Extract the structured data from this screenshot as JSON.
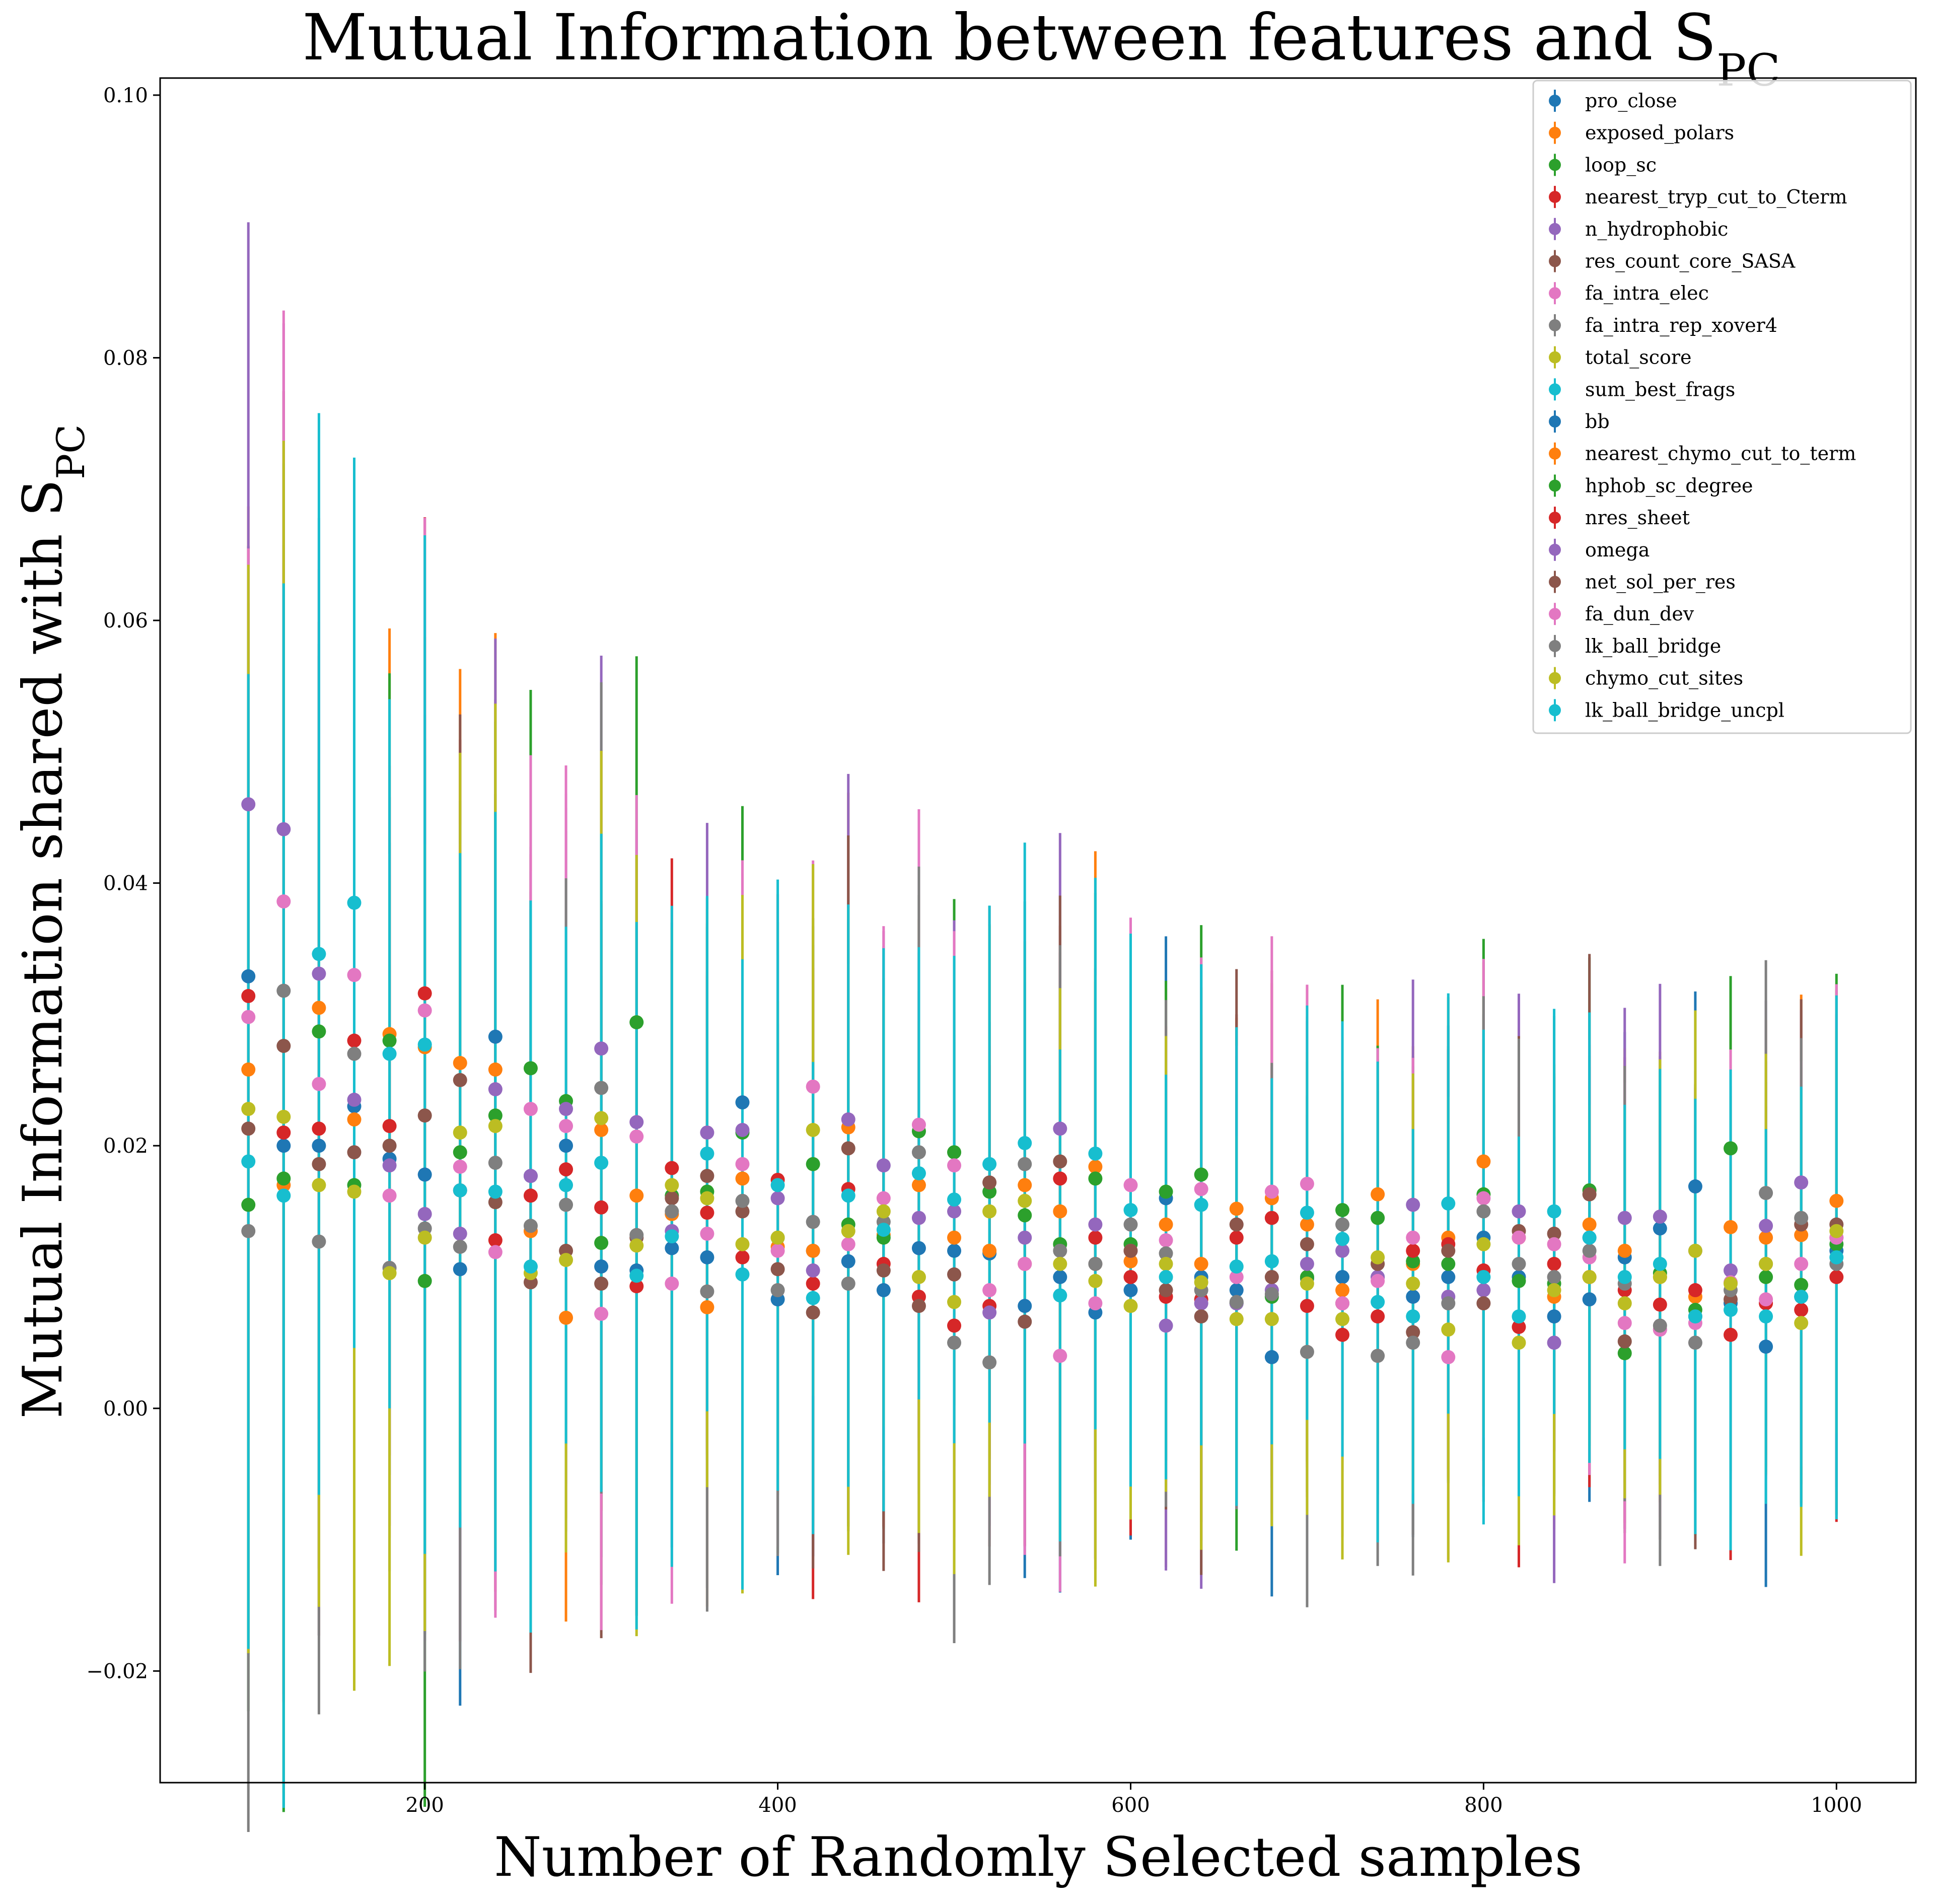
{
  "chart_data": {
    "type": "scatter",
    "title": "Mutual Information between features and S",
    "title_sub": "PC",
    "xlabel": "Number of Randomly Selected samples",
    "ylabel": "Mutual Information shared with S",
    "ylabel_sub": "PC",
    "xlim": [
      50,
      1045
    ],
    "ylim": [
      -0.0285,
      0.1013
    ],
    "xticks": [
      200,
      400,
      600,
      800,
      1000
    ],
    "yticks": [
      -0.02,
      0.0,
      0.02,
      0.04,
      0.06,
      0.08,
      0.1
    ],
    "ytick_labels": [
      "−0.02",
      "0.00",
      "0.02",
      "0.04",
      "0.06",
      "0.08",
      "0.10"
    ],
    "grid": false,
    "legend_position": "top-right",
    "x": [
      100,
      120,
      140,
      160,
      180,
      200,
      220,
      240,
      260,
      280,
      300,
      320,
      340,
      360,
      380,
      400,
      420,
      440,
      460,
      480,
      500,
      520,
      540,
      560,
      580,
      600,
      620,
      640,
      660,
      680,
      700,
      720,
      740,
      760,
      780,
      800,
      820,
      840,
      860,
      880,
      900,
      920,
      940,
      960,
      980,
      1000
    ],
    "series": [
      {
        "name": "pro_close",
        "color": "#1f77b4",
        "values": [
          0.0329,
          0.02,
          0.02,
          0.023,
          0.019,
          0.0178,
          0.0106,
          0.0283,
          0.0177,
          0.02,
          0.0108,
          0.0105,
          0.0122,
          0.0115,
          0.0233,
          0.0083,
          0.012,
          0.0112,
          0.009,
          0.0122,
          0.012,
          0.0118,
          0.0078,
          0.01,
          0.0073,
          0.009,
          0.016,
          0.01,
          0.009,
          0.0039,
          0.0099,
          0.01,
          0.01,
          0.0085,
          0.01,
          0.013,
          0.01,
          0.007,
          0.0083,
          0.0115,
          0.0137,
          0.0169,
          0.008,
          0.0047,
          0.0085,
          0.012
        ]
      },
      {
        "name": "exposed_polars",
        "color": "#ff7f0e",
        "values": [
          0.0258,
          0.017,
          0.0305,
          0.022,
          0.0285,
          0.0275,
          0.0263,
          0.0258,
          0.0135,
          0.0069,
          0.0212,
          0.0162,
          0.0148,
          0.0077,
          0.0175,
          0.0123,
          0.012,
          0.0214,
          0.0132,
          0.017,
          0.013,
          0.012,
          0.017,
          0.015,
          0.0184,
          0.0112,
          0.014,
          0.011,
          0.0152,
          0.016,
          0.014,
          0.009,
          0.0163,
          0.011,
          0.013,
          0.0188,
          0.013,
          0.0085,
          0.014,
          0.012,
          0.01,
          0.0085,
          0.0138,
          0.013,
          0.0132,
          0.0158
        ]
      },
      {
        "name": "loop_sc",
        "color": "#2ca02c",
        "values": [
          0.0155,
          0.0175,
          0.0287,
          0.017,
          0.028,
          0.0097,
          0.0195,
          0.0223,
          0.0259,
          0.0234,
          0.0126,
          0.0294,
          0.0162,
          0.0165,
          0.021,
          0.013,
          0.0186,
          0.014,
          0.013,
          0.0211,
          0.0195,
          0.0165,
          0.0147,
          0.0125,
          0.0175,
          0.0125,
          0.0165,
          0.0178,
          0.008,
          0.0085,
          0.01,
          0.0151,
          0.0145,
          0.0112,
          0.011,
          0.0163,
          0.0097,
          0.0095,
          0.0166,
          0.0042,
          0.0103,
          0.0075,
          0.0198,
          0.01,
          0.0094,
          0.0125
        ]
      },
      {
        "name": "nearest_tryp_cut_to_Cterm",
        "color": "#d62728",
        "values": [
          0.0314,
          0.021,
          0.0213,
          0.028,
          0.0215,
          0.0316,
          0.0166,
          0.0128,
          0.0162,
          0.0182,
          0.0153,
          0.0093,
          0.0183,
          0.0149,
          0.0115,
          0.0174,
          0.0095,
          0.0167,
          0.011,
          0.0085,
          0.0063,
          0.0078,
          0.011,
          0.0175,
          0.013,
          0.01,
          0.0085,
          0.0083,
          0.013,
          0.0145,
          0.0078,
          0.0056,
          0.007,
          0.012,
          0.0125,
          0.0105,
          0.0062,
          0.011,
          0.01,
          0.009,
          0.0079,
          0.009,
          0.0056,
          0.008,
          0.0075,
          0.01
        ]
      },
      {
        "name": "n_hydrophobic",
        "color": "#9467bd",
        "values": [
          0.046,
          0.0441,
          0.0331,
          0.0235,
          0.0185,
          0.0148,
          0.0133,
          0.0243,
          0.0177,
          0.0228,
          0.0274,
          0.0218,
          0.0135,
          0.021,
          0.0212,
          0.016,
          0.0105,
          0.022,
          0.0185,
          0.0145,
          0.015,
          0.0073,
          0.013,
          0.0213,
          0.014,
          0.012,
          0.0063,
          0.008,
          0.008,
          0.009,
          0.011,
          0.012,
          0.01,
          0.0155,
          0.0085,
          0.009,
          0.015,
          0.005,
          0.013,
          0.0145,
          0.0146,
          0.012,
          0.0105,
          0.0139,
          0.0172,
          0.013
        ]
      },
      {
        "name": "res_count_core_SASA",
        "color": "#8c564b",
        "values": [
          0.0213,
          0.0276,
          0.0186,
          0.0195,
          0.02,
          0.0223,
          0.025,
          0.0157,
          0.0096,
          0.012,
          0.0095,
          0.013,
          0.016,
          0.0177,
          0.015,
          0.0106,
          0.0073,
          0.0198,
          0.0105,
          0.0078,
          0.0102,
          0.0172,
          0.0066,
          0.0188,
          0.011,
          0.012,
          0.009,
          0.007,
          0.014,
          0.01,
          0.0125,
          0.008,
          0.011,
          0.0058,
          0.012,
          0.008,
          0.0135,
          0.0133,
          0.0163,
          0.0051,
          0.006,
          0.007,
          0.0083,
          0.011,
          0.014,
          0.014
        ]
      },
      {
        "name": "fa_intra_elec",
        "color": "#e377c2",
        "values": [
          0.0298,
          0.0386,
          0.0247,
          0.033,
          0.0162,
          0.0303,
          0.0184,
          0.0119,
          0.0228,
          0.0215,
          0.0072,
          0.0207,
          0.0095,
          0.0133,
          0.0186,
          0.012,
          0.0245,
          0.0125,
          0.016,
          0.0216,
          0.0185,
          0.009,
          0.011,
          0.004,
          0.008,
          0.017,
          0.0128,
          0.0167,
          0.01,
          0.0165,
          0.0171,
          0.008,
          0.0097,
          0.013,
          0.0039,
          0.016,
          0.013,
          0.0125,
          0.0115,
          0.0065,
          0.006,
          0.0065,
          0.0096,
          0.0083,
          0.011,
          0.013
        ]
      },
      {
        "name": "fa_intra_rep_xover4",
        "color": "#7f7f7f",
        "values": [
          0.0135,
          0.0318,
          0.0127,
          0.027,
          0.0107,
          0.0137,
          0.0123,
          0.0187,
          0.0139,
          0.0155,
          0.0244,
          0.0132,
          0.015,
          0.0089,
          0.0158,
          0.009,
          0.0142,
          0.0095,
          0.0142,
          0.0195,
          0.005,
          0.0035,
          0.0186,
          0.012,
          0.011,
          0.014,
          0.0118,
          0.009,
          0.0081,
          0.0087,
          0.0043,
          0.014,
          0.004,
          0.005,
          0.008,
          0.015,
          0.011,
          0.01,
          0.012,
          0.0095,
          0.0063,
          0.005,
          0.009,
          0.0164,
          0.0145,
          0.011
        ]
      },
      {
        "name": "total_score",
        "color": "#bcbd22",
        "values": [
          0.0228,
          0.0222,
          0.017,
          0.0165,
          0.0103,
          0.013,
          0.021,
          0.0215,
          0.0103,
          0.0113,
          0.0221,
          0.0124,
          0.017,
          0.016,
          0.0125,
          0.013,
          0.0212,
          0.0135,
          0.015,
          0.01,
          0.0081,
          0.015,
          0.0158,
          0.011,
          0.0097,
          0.0078,
          0.011,
          0.0096,
          0.0068,
          0.0068,
          0.0095,
          0.0068,
          0.0115,
          0.0095,
          0.006,
          0.0125,
          0.005,
          0.009,
          0.01,
          0.008,
          0.01,
          0.012,
          0.0095,
          0.011,
          0.0065,
          0.0135
        ]
      },
      {
        "name": "sum_best_frags",
        "color": "#17becf",
        "values": [
          0.0188,
          0.0162,
          0.0346,
          0.0385,
          0.027,
          0.0277,
          0.0166,
          0.0165,
          0.0108,
          0.017,
          0.0187,
          0.0101,
          0.0131,
          0.0194,
          0.0102,
          0.017,
          0.0084,
          0.0162,
          0.0136,
          0.0179,
          0.0159,
          0.0186,
          0.0202,
          0.0086,
          0.0194,
          0.0151,
          0.01,
          0.0155,
          0.0108,
          0.0112,
          0.0149,
          0.0129,
          0.0081,
          0.007,
          0.0156,
          0.01,
          0.007,
          0.015,
          0.013,
          0.01,
          0.011,
          0.007,
          0.0075,
          0.007,
          0.0085,
          0.0115
        ]
      }
    ],
    "error": [
      0.04,
      0.045,
      0.036,
      0.038,
      0.027,
      0.035,
      0.03,
      0.03,
      0.026,
      0.024,
      0.027,
      0.026,
      0.022,
      0.022,
      0.024,
      0.021,
      0.021,
      0.023,
      0.02,
      0.021,
      0.02,
      0.019,
      0.02,
      0.021,
      0.021,
      0.019,
      0.018,
      0.019,
      0.017,
      0.017,
      0.017,
      0.016,
      0.016,
      0.016,
      0.016,
      0.017,
      0.016,
      0.016,
      0.016,
      0.016,
      0.016,
      0.016,
      0.016,
      0.016,
      0.016,
      0.018
    ],
    "legend": [
      {
        "label": "pro_close",
        "color": "#1f77b4"
      },
      {
        "label": "exposed_polars",
        "color": "#ff7f0e"
      },
      {
        "label": "loop_sc",
        "color": "#2ca02c"
      },
      {
        "label": "nearest_tryp_cut_to_Cterm",
        "color": "#d62728"
      },
      {
        "label": "n_hydrophobic",
        "color": "#9467bd"
      },
      {
        "label": "res_count_core_SASA",
        "color": "#8c564b"
      },
      {
        "label": "fa_intra_elec",
        "color": "#e377c2"
      },
      {
        "label": "fa_intra_rep_xover4",
        "color": "#7f7f7f"
      },
      {
        "label": "total_score",
        "color": "#bcbd22"
      },
      {
        "label": "sum_best_frags",
        "color": "#17becf"
      },
      {
        "label": "bb",
        "color": "#1f77b4"
      },
      {
        "label": "nearest_chymo_cut_to_term",
        "color": "#ff7f0e"
      },
      {
        "label": "hphob_sc_degree",
        "color": "#2ca02c"
      },
      {
        "label": "nres_sheet",
        "color": "#d62728"
      },
      {
        "label": "omega",
        "color": "#9467bd"
      },
      {
        "label": "net_sol_per_res",
        "color": "#8c564b"
      },
      {
        "label": "fa_dun_dev",
        "color": "#e377c2"
      },
      {
        "label": "lk_ball_bridge",
        "color": "#7f7f7f"
      },
      {
        "label": "chymo_cut_sites",
        "color": "#bcbd22"
      },
      {
        "label": "lk_ball_bridge_uncpl",
        "color": "#17becf"
      }
    ]
  }
}
